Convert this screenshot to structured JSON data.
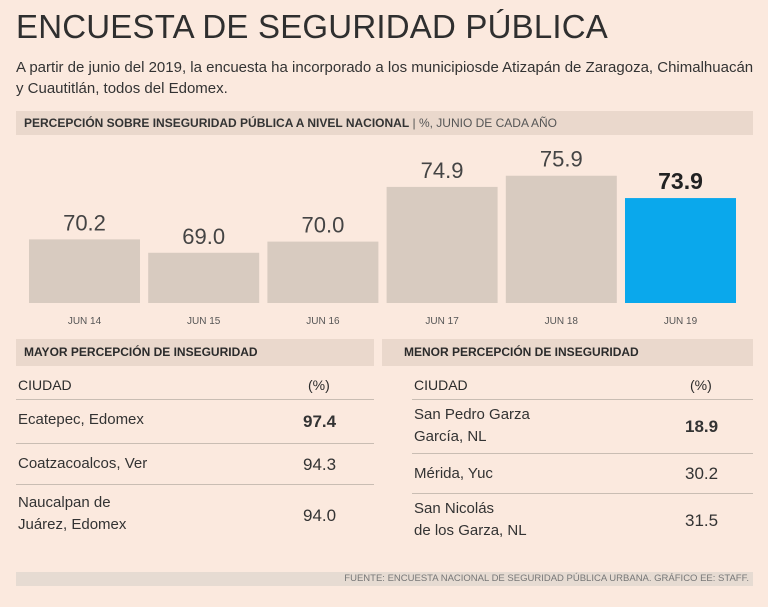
{
  "header": {
    "title": "ENCUESTA DE SEGURIDAD PÚBLICA",
    "subtitle": "A partir de junio del 2019, la encuesta ha incorporado a los municipiosde Atizapán de Zaragoza, Chimalhuacán y Cuautitlán, todos del Edomex."
  },
  "chart_data": {
    "type": "bar",
    "title": "PERCEPCIÓN SOBRE INSEGURIDAD PÚBLICA A NIVEL NACIONAL",
    "title_separator": " | ",
    "subtitle": "%, JUNIO DE CADA AÑO",
    "categories": [
      "JUN 14",
      "JUN 15",
      "JUN 16",
      "JUN 17",
      "JUN 18",
      "JUN 19"
    ],
    "values": [
      70.2,
      69.0,
      70.0,
      74.9,
      75.9,
      73.9
    ],
    "value_labels": [
      "70.2",
      "69.0",
      "70.0",
      "74.9",
      "75.9",
      "73.9"
    ],
    "highlight_index": 5,
    "colors": {
      "bar": "#d8cbc0",
      "highlight": "#0aa8ec"
    },
    "grid": false,
    "legend": "none"
  },
  "mayor": {
    "title": "MAYOR PERCEPCIÓN DE INSEGURIDAD",
    "col_city": "CIUDAD",
    "col_pct": "(%)",
    "rows": [
      {
        "city": "Ecatepec, Edomex",
        "value": "97.4"
      },
      {
        "city": "Coatzacoalcos, Ver",
        "value": "94.3"
      },
      {
        "city": "Naucalpan de\nJuárez, Edomex",
        "value": "94.0"
      }
    ]
  },
  "menor": {
    "title": "MENOR PERCEPCIÓN DE INSEGURIDAD",
    "col_city": "CIUDAD",
    "col_pct": "(%)",
    "rows": [
      {
        "city": "San Pedro Garza\nGarcía, NL",
        "value": "18.9"
      },
      {
        "city": "Mérida, Yuc",
        "value": "30.2"
      },
      {
        "city": "San Nicolás\nde los Garza, NL",
        "value": "31.5"
      }
    ]
  },
  "source": "FUENTE: ENCUESTA NACIONAL DE SEGURIDAD PÚBLICA URBANA. GRÁFICO EE: STAFF."
}
